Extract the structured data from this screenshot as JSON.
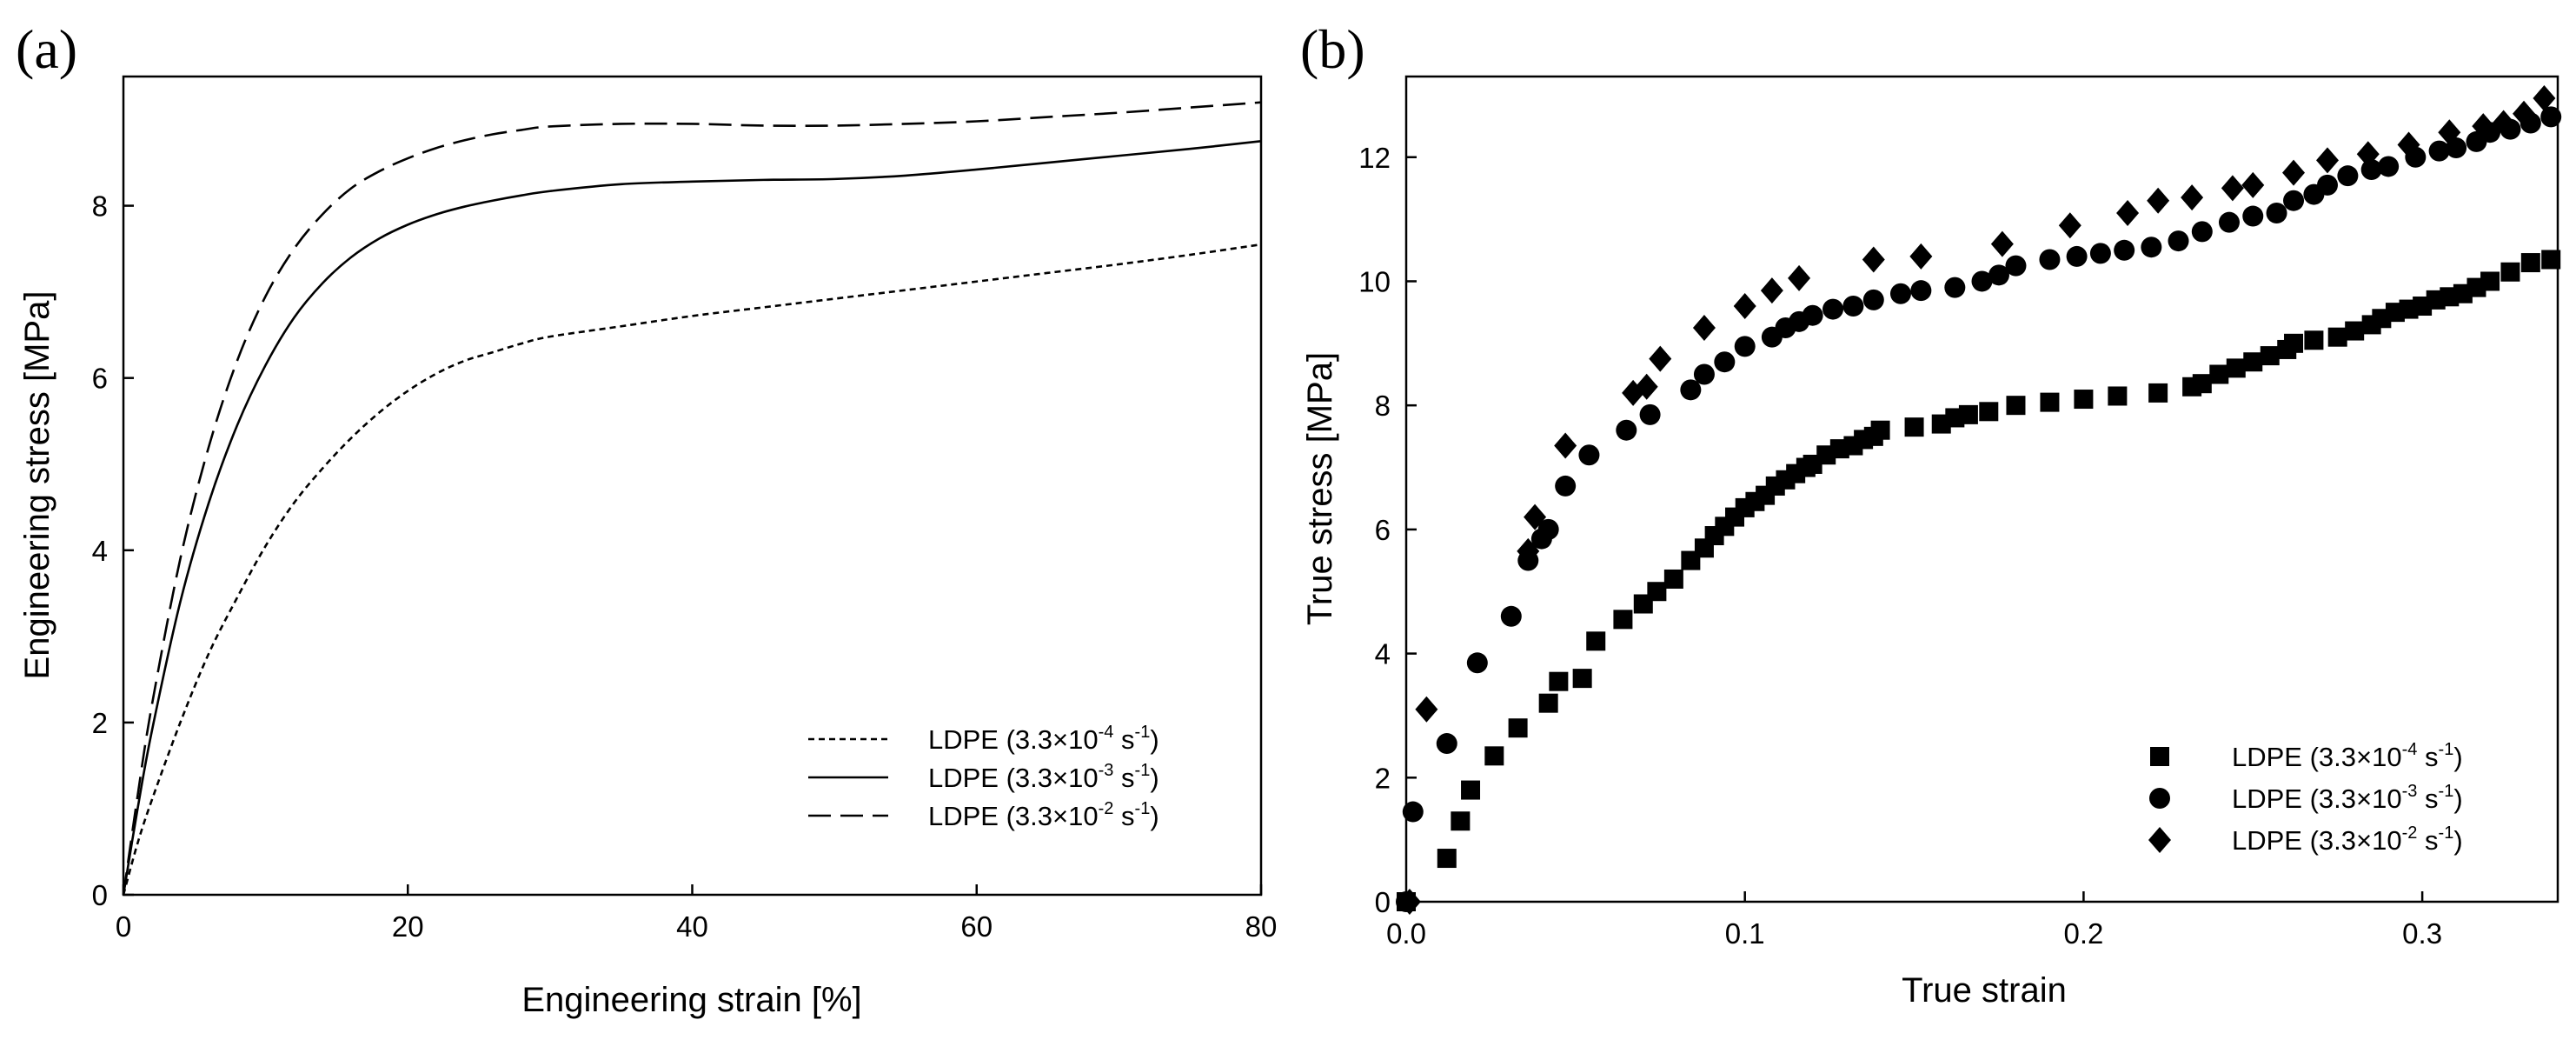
{
  "chart_data": [
    {
      "panel": "(a)",
      "type": "line",
      "title": "",
      "xlabel": "Engineering strain [%]",
      "ylabel": "Engineering stress [MPa]",
      "xlim": [
        0,
        80
      ],
      "ylim": [
        0,
        9.5
      ],
      "xticks": [
        0,
        20,
        40,
        60,
        80
      ],
      "yticks": [
        0,
        2,
        4,
        6,
        8
      ],
      "grid": false,
      "legend_position": "bottom-right",
      "series": [
        {
          "name": "LDPE (3.3×10⁻⁴ s⁻¹)",
          "legend": {
            "base": "LDPE (3.3×10",
            "exp": "-4",
            "mid": " s",
            "exp2": "-1",
            "end": ")"
          },
          "style": "short-dash",
          "x": [
            0,
            1,
            2,
            4,
            6,
            8,
            10,
            12,
            14,
            16,
            18,
            20,
            22,
            24,
            26,
            28,
            30,
            35,
            40,
            45,
            50,
            55,
            60,
            65,
            70,
            75,
            80
          ],
          "y": [
            0,
            0.6,
            1.1,
            2.0,
            2.8,
            3.45,
            4.05,
            4.55,
            4.95,
            5.3,
            5.6,
            5.85,
            6.05,
            6.2,
            6.3,
            6.4,
            6.48,
            6.6,
            6.72,
            6.82,
            6.92,
            7.02,
            7.12,
            7.22,
            7.32,
            7.43,
            7.55
          ]
        },
        {
          "name": "LDPE (3.3×10⁻³ s⁻¹)",
          "legend": {
            "base": "LDPE (3.3×10",
            "exp": "-3",
            "mid": " s",
            "exp2": "-1",
            "end": ")"
          },
          "style": "solid",
          "x": [
            0,
            1,
            2,
            4,
            6,
            8,
            10,
            12,
            14,
            16,
            18,
            20,
            22,
            24,
            26,
            28,
            30,
            35,
            40,
            45,
            50,
            55,
            60,
            65,
            70,
            75,
            80
          ],
          "y": [
            0,
            1.0,
            1.9,
            3.4,
            4.55,
            5.45,
            6.15,
            6.7,
            7.1,
            7.4,
            7.62,
            7.78,
            7.9,
            7.99,
            8.06,
            8.12,
            8.17,
            8.25,
            8.28,
            8.3,
            8.31,
            8.35,
            8.42,
            8.5,
            8.58,
            8.66,
            8.75
          ]
        },
        {
          "name": "LDPE (3.3×10⁻² s⁻¹)",
          "legend": {
            "base": "LDPE (3.3×10",
            "exp": "-2",
            "mid": " s",
            "exp2": "-1",
            "end": ")"
          },
          "style": "long-dash",
          "x": [
            0,
            1,
            2,
            4,
            6,
            8,
            10,
            12,
            14,
            16,
            18,
            20,
            22,
            24,
            26,
            28,
            30,
            35,
            40,
            45,
            50,
            55,
            60,
            65,
            70,
            75,
            80
          ],
          "y": [
            0,
            1.15,
            2.2,
            3.9,
            5.2,
            6.2,
            6.95,
            7.5,
            7.9,
            8.2,
            8.4,
            8.55,
            8.67,
            8.76,
            8.83,
            8.88,
            8.92,
            8.95,
            8.95,
            8.93,
            8.93,
            8.95,
            8.98,
            9.03,
            9.08,
            9.14,
            9.2
          ]
        }
      ]
    },
    {
      "panel": "(b)",
      "type": "scatter",
      "title": "",
      "xlabel": "True strain",
      "ylabel": "True stress [MPa]",
      "xlim": [
        0,
        0.34
      ],
      "ylim": [
        0,
        13.3
      ],
      "xticks": [
        0.0,
        0.1,
        0.2,
        0.3
      ],
      "xtick_labels": [
        "0.0",
        "0.1",
        "0.2",
        "0.3"
      ],
      "yticks": [
        0,
        2,
        4,
        6,
        8,
        10,
        12
      ],
      "grid": false,
      "legend_position": "bottom-right",
      "series": [
        {
          "name": "LDPE (3.3×10⁻⁴ s⁻¹)",
          "legend": {
            "base": "LDPE (3.3×10",
            "exp": "-4",
            "mid": " s",
            "exp2": "-1",
            "end": ")"
          },
          "marker": "square",
          "x": [
            0,
            0.012,
            0.016,
            0.019,
            0.026,
            0.033,
            0.042,
            0.045,
            0.052,
            0.056,
            0.064,
            0.07,
            0.074,
            0.079,
            0.084,
            0.088,
            0.091,
            0.094,
            0.097,
            0.1,
            0.103,
            0.106,
            0.109,
            0.112,
            0.115,
            0.118,
            0.12,
            0.124,
            0.128,
            0.132,
            0.135,
            0.138,
            0.14,
            0.15,
            0.158,
            0.162,
            0.166,
            0.172,
            0.18,
            0.19,
            0.2,
            0.21,
            0.222,
            0.232,
            0.235,
            0.24,
            0.245,
            0.25,
            0.255,
            0.26,
            0.262,
            0.268,
            0.275,
            0.28,
            0.285,
            0.288,
            0.292,
            0.296,
            0.3,
            0.304,
            0.308,
            0.312,
            0.316,
            0.32,
            0.326,
            0.332,
            0.338
          ],
          "y": [
            0,
            0.7,
            1.3,
            1.8,
            2.35,
            2.8,
            3.2,
            3.55,
            3.6,
            4.2,
            4.55,
            4.8,
            5.0,
            5.2,
            5.5,
            5.7,
            5.9,
            6.05,
            6.2,
            6.35,
            6.45,
            6.55,
            6.7,
            6.8,
            6.9,
            7.0,
            7.05,
            7.2,
            7.3,
            7.35,
            7.45,
            7.5,
            7.6,
            7.65,
            7.7,
            7.8,
            7.85,
            7.9,
            8.0,
            8.05,
            8.1,
            8.15,
            8.2,
            8.3,
            8.35,
            8.5,
            8.6,
            8.7,
            8.8,
            8.9,
            9.0,
            9.05,
            9.1,
            9.2,
            9.3,
            9.4,
            9.5,
            9.55,
            9.6,
            9.7,
            9.75,
            9.8,
            9.9,
            10.0,
            10.15,
            10.3,
            10.35
          ]
        },
        {
          "name": "LDPE (3.3×10⁻³ s⁻¹)",
          "legend": {
            "base": "LDPE (3.3×10",
            "exp": "-3",
            "mid": " s",
            "exp2": "-1",
            "end": ")"
          },
          "marker": "circle",
          "x": [
            0,
            0.002,
            0.012,
            0.021,
            0.031,
            0.036,
            0.04,
            0.042,
            0.047,
            0.054,
            0.065,
            0.072,
            0.084,
            0.088,
            0.094,
            0.1,
            0.108,
            0.112,
            0.116,
            0.12,
            0.126,
            0.132,
            0.138,
            0.146,
            0.152,
            0.162,
            0.17,
            0.175,
            0.18,
            0.19,
            0.198,
            0.205,
            0.212,
            0.22,
            0.228,
            0.235,
            0.243,
            0.25,
            0.257,
            0.262,
            0.268,
            0.272,
            0.278,
            0.285,
            0.29,
            0.298,
            0.305,
            0.31,
            0.316,
            0.32,
            0.326,
            0.332,
            0.338
          ],
          "y": [
            0,
            1.45,
            2.55,
            3.85,
            4.6,
            5.5,
            5.85,
            6.0,
            6.7,
            7.2,
            7.6,
            7.85,
            8.25,
            8.5,
            8.7,
            8.95,
            9.1,
            9.25,
            9.35,
            9.45,
            9.55,
            9.6,
            9.7,
            9.8,
            9.85,
            9.9,
            10.0,
            10.1,
            10.25,
            10.35,
            10.4,
            10.45,
            10.5,
            10.55,
            10.65,
            10.8,
            10.95,
            11.05,
            11.1,
            11.3,
            11.4,
            11.55,
            11.7,
            11.8,
            11.85,
            12.0,
            12.1,
            12.15,
            12.25,
            12.4,
            12.45,
            12.55,
            12.65
          ]
        },
        {
          "name": "LDPE (3.3×10⁻² s⁻¹)",
          "legend": {
            "base": "LDPE (3.3×10",
            "exp": "-2",
            "mid": " s",
            "exp2": "-1",
            "end": ")"
          },
          "marker": "diamond",
          "x": [
            0.001,
            0.006,
            0.036,
            0.038,
            0.047,
            0.067,
            0.071,
            0.075,
            0.088,
            0.1,
            0.108,
            0.116,
            0.138,
            0.152,
            0.176,
            0.196,
            0.213,
            0.222,
            0.232,
            0.244,
            0.25,
            0.262,
            0.272,
            0.284,
            0.296,
            0.308,
            0.318,
            0.324,
            0.33,
            0.336
          ],
          "y": [
            0,
            3.1,
            5.65,
            6.2,
            7.35,
            8.2,
            8.3,
            8.75,
            9.25,
            9.6,
            9.85,
            10.05,
            10.35,
            10.4,
            10.6,
            10.9,
            11.1,
            11.3,
            11.35,
            11.5,
            11.55,
            11.75,
            11.95,
            12.05,
            12.2,
            12.4,
            12.5,
            12.55,
            12.7,
            12.95
          ]
        }
      ]
    }
  ]
}
